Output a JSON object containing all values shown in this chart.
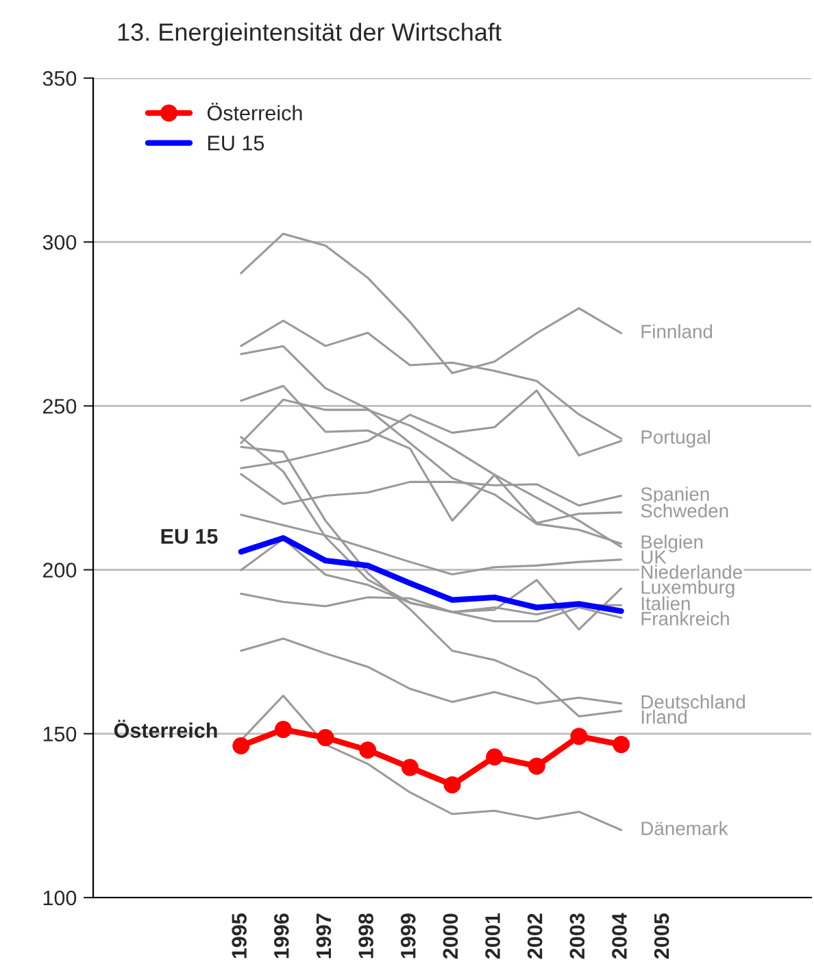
{
  "chart_data": {
    "type": "line",
    "title": "13. Energieintensität der Wirtschaft",
    "categories": [
      null,
      null,
      null,
      "1995",
      "1996",
      "1997",
      "1998",
      "1999",
      "2000",
      "2001",
      "2002",
      "2003",
      "2004",
      "2005",
      null,
      null,
      null
    ],
    "ylim": [
      100,
      350
    ],
    "yticks": [
      100,
      150,
      200,
      250,
      300,
      350
    ],
    "grid": "y",
    "legend": "top left",
    "series": [
      {
        "name": "Finnland",
        "color": "#999999",
        "values": [
          null,
          null,
          null,
          290.5,
          302.5,
          298.9,
          289.1,
          275.6,
          260.0,
          263.5,
          272.2,
          279.8,
          272.2,
          null,
          null,
          null,
          null
        ]
      },
      {
        "name": "Portugal",
        "color": "#999999",
        "values": [
          null,
          null,
          null,
          268.3,
          276.0,
          268.3,
          272.3,
          262.4,
          263.2,
          260.7,
          257.6,
          247.4,
          240.0,
          null,
          null,
          null,
          null
        ]
      },
      {
        "color": "#999999",
        "values": [
          null,
          null,
          null,
          231,
          233,
          236,
          239.3,
          247.3,
          241.8,
          243.5,
          254.7,
          234.9,
          239.3,
          null,
          null,
          null,
          null
        ]
      },
      {
        "name": "Spanien",
        "color": "#999999",
        "values": [
          null,
          null,
          null,
          229.2,
          220.1,
          222.6,
          223.6,
          226.8,
          226.8,
          225.8,
          226.1,
          219.6,
          222.6,
          null,
          null,
          null,
          null
        ]
      },
      {
        "name": "Schweden",
        "color": "#999999",
        "values": [
          null,
          null,
          null,
          251.6,
          256.1,
          242.1,
          242.5,
          237,
          215,
          228.9,
          214.3,
          217.1,
          217.5,
          null,
          null,
          null,
          null
        ]
      },
      {
        "name": "Belgien",
        "color": "#999999",
        "values": [
          null,
          null,
          null,
          265.8,
          268.2,
          255.4,
          249.1,
          238.7,
          228,
          223,
          214,
          212.2,
          208,
          null,
          null,
          null,
          null
        ]
      },
      {
        "name": "UK",
        "color": "#999999",
        "values": [
          null,
          null,
          null,
          238.7,
          251.9,
          248.8,
          248.8,
          244,
          237,
          229,
          222,
          215,
          207,
          null,
          null,
          null,
          null
        ]
      },
      {
        "name": "Niederlande",
        "color": "#999999",
        "values": [
          null,
          null,
          null,
          216.8,
          213.6,
          210.5,
          206.5,
          202.4,
          198.6,
          200.8,
          201.3,
          202.4,
          203.1,
          null,
          null,
          null,
          null
        ]
      },
      {
        "name": "Luxemburg",
        "color": "#999999",
        "values": [
          null,
          null,
          null,
          240.5,
          230,
          210,
          197,
          190,
          187.1,
          187.8,
          196.9,
          181.8,
          194.3,
          null,
          null,
          null,
          null
        ]
      },
      {
        "name": "Italien",
        "color": "#999999",
        "values": [
          null,
          null,
          null,
          192.7,
          190.2,
          188.9,
          191.6,
          191.3,
          187.1,
          188.5,
          186.4,
          189.2,
          189.2,
          null,
          null,
          null,
          null
        ]
      },
      {
        "name": "Frankreich",
        "color": "#999999",
        "values": [
          null,
          null,
          null,
          199.9,
          209.4,
          198.5,
          195.4,
          189.9,
          187.1,
          184.3,
          184.3,
          188.5,
          185.4,
          null,
          null,
          null,
          null
        ]
      },
      {
        "name": "Deutschland",
        "color": "#999999",
        "values": [
          null,
          null,
          null,
          175.3,
          179.0,
          174.5,
          170.4,
          163.7,
          159.7,
          162.7,
          159.2,
          161.0,
          159.2,
          null,
          null,
          null,
          null
        ]
      },
      {
        "name": "Irland",
        "color": "#999999",
        "values": [
          null,
          null,
          null,
          237.5,
          236,
          215,
          199,
          188,
          175.3,
          172.5,
          166.9,
          155.3,
          156.9,
          null,
          null,
          null,
          null
        ]
      },
      {
        "name": "Dänemark",
        "color": "#999999",
        "values": [
          null,
          null,
          null,
          148,
          161.6,
          146.7,
          140.8,
          132.1,
          125.5,
          126.5,
          124,
          126.2,
          120.6,
          null,
          null,
          null,
          null
        ]
      },
      {
        "name": "EU 15",
        "color": "#0000ff",
        "values": [
          null,
          null,
          null,
          205.5,
          209.7,
          202.8,
          201.3,
          195.9,
          190.8,
          191.6,
          188.5,
          189.6,
          187.4,
          null,
          null,
          null,
          null
        ]
      },
      {
        "name": "Österreich",
        "color": "#ff0000",
        "marker": "circle",
        "values": [
          null,
          null,
          null,
          146.3,
          151.3,
          148.8,
          145.0,
          139.7,
          134.4,
          142.9,
          140.1,
          149.2,
          146.7,
          null,
          null,
          null,
          null
        ]
      }
    ],
    "annotations": [
      {
        "text": "EU 15",
        "x": "1995",
        "y": 205.5
      },
      {
        "text": "Österreich",
        "x": "1995",
        "y": 146.3
      }
    ]
  }
}
